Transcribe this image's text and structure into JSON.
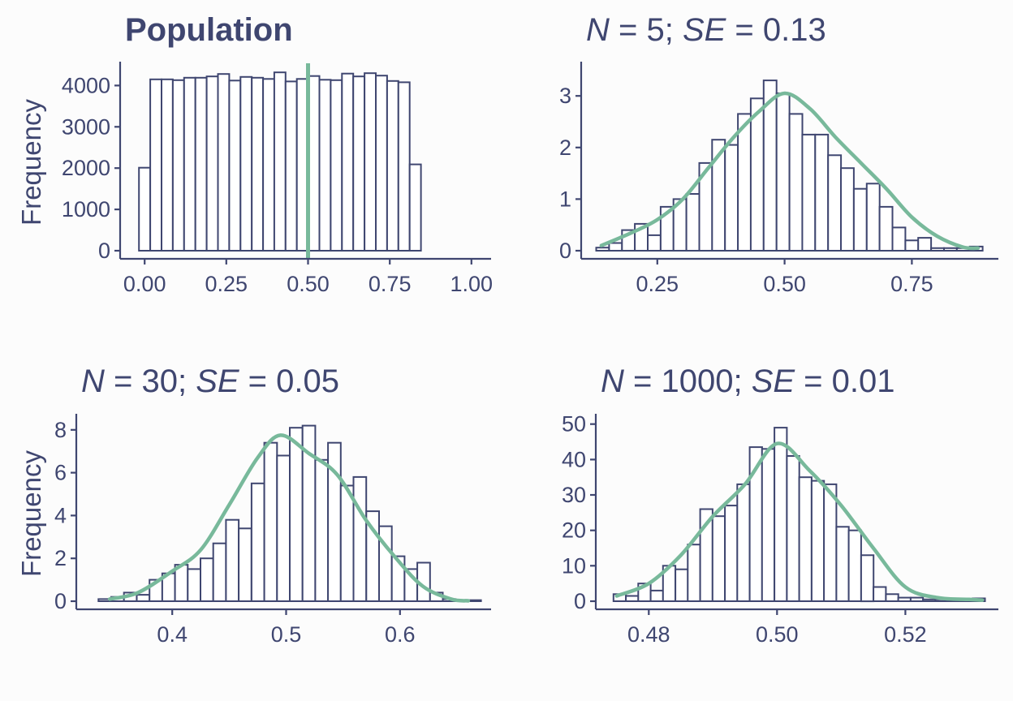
{
  "colors": {
    "ink": "#3f4670",
    "accent": "#78b99b",
    "background": "#fcfcfc"
  },
  "chart_data": [
    {
      "type": "bar",
      "title": "Population",
      "ylabel": "Frequency",
      "xlim": [
        -0.06,
        1.06
      ],
      "ylim": [
        0,
        4500
      ],
      "xticks": [
        0,
        0.25,
        0.5,
        0.75,
        1
      ],
      "xtick_labels": [
        "0.00",
        "0.25",
        "0.50",
        "0.75",
        "1.00"
      ],
      "yticks": [
        0,
        1000,
        2000,
        3000,
        4000
      ],
      "ytick_labels": [
        "0",
        "1000",
        "2000",
        "3000",
        "4000"
      ],
      "bin_start": -0.0172,
      "bin_width": 0.0345,
      "values": [
        2010,
        4150,
        4150,
        4130,
        4190,
        4190,
        4220,
        4280,
        4120,
        4210,
        4190,
        4160,
        4320,
        4100,
        4160,
        4230,
        4140,
        4130,
        4290,
        4220,
        4300,
        4240,
        4110,
        4080,
        2090
      ],
      "vline": 0.5,
      "grid": false
    },
    {
      "type": "bar",
      "title_parts": [
        "N",
        " = 5; ",
        "SE",
        " = 0.13"
      ],
      "xlim": [
        0.11,
        0.92
      ],
      "ylim": [
        0,
        3.6
      ],
      "xticks": [
        0.25,
        0.5,
        0.75
      ],
      "xtick_labels": [
        "0.25",
        "0.50",
        "0.75"
      ],
      "yticks": [
        0,
        1,
        2,
        3
      ],
      "ytick_labels": [
        "0",
        "1",
        "2",
        "3"
      ],
      "bin_start": 0.13,
      "bin_width": 0.0253,
      "values": [
        0.06,
        0.15,
        0.4,
        0.52,
        0.3,
        0.85,
        1.0,
        1.1,
        1.7,
        2.15,
        2.05,
        2.65,
        2.95,
        3.3,
        3.05,
        2.65,
        2.25,
        2.25,
        1.85,
        1.6,
        1.2,
        1.3,
        0.85,
        0.45,
        0.2,
        0.25,
        0.05,
        0.05,
        0.05,
        0.08
      ],
      "density": {
        "x": [
          0.14,
          0.2,
          0.25,
          0.3,
          0.35,
          0.4,
          0.45,
          0.5,
          0.55,
          0.6,
          0.65,
          0.7,
          0.75,
          0.8,
          0.85,
          0.88
        ],
        "y": [
          0.1,
          0.35,
          0.6,
          1.0,
          1.6,
          2.2,
          2.7,
          3.05,
          2.75,
          2.2,
          1.7,
          1.2,
          0.65,
          0.28,
          0.07,
          0.05
        ]
      },
      "grid": false
    },
    {
      "type": "bar",
      "title_parts": [
        "N",
        " = 30; ",
        "SE",
        " = 0.05"
      ],
      "ylabel": "Frequency",
      "xlim": [
        0.32,
        0.68
      ],
      "ylim": [
        0,
        8.6
      ],
      "xticks": [
        0.4,
        0.5,
        0.6
      ],
      "xtick_labels": [
        "0.4",
        "0.5",
        "0.6"
      ],
      "yticks": [
        0,
        2,
        4,
        6,
        8
      ],
      "ytick_labels": [
        "0",
        "2",
        "4",
        "6",
        "8"
      ],
      "bin_start": 0.3352,
      "bin_width": 0.0112,
      "values": [
        0.1,
        0.2,
        0.4,
        0.3,
        1.0,
        1.3,
        1.7,
        1.5,
        2.0,
        2.7,
        3.8,
        3.4,
        5.5,
        7.4,
        6.8,
        8.1,
        8.2,
        6.6,
        7.4,
        5.4,
        5.8,
        4.2,
        3.5,
        2.1,
        1.5,
        1.8,
        0.4,
        0.1,
        0.05,
        0.05
      ],
      "density": {
        "x": [
          0.345,
          0.37,
          0.4,
          0.425,
          0.45,
          0.475,
          0.495,
          0.52,
          0.545,
          0.57,
          0.595,
          0.62,
          0.645,
          0.66
        ],
        "y": [
          0.1,
          0.4,
          1.4,
          2.4,
          4.5,
          6.7,
          7.75,
          6.9,
          5.9,
          3.8,
          2.1,
          0.7,
          0.1,
          0.02
        ]
      },
      "grid": false
    },
    {
      "type": "bar",
      "title_parts": [
        "N",
        " = 1000; ",
        "SE",
        " = 0.01"
      ],
      "xlim": [
        0.4725,
        0.5345
      ],
      "ylim": [
        0,
        52
      ],
      "xticks": [
        0.48,
        0.5,
        0.52
      ],
      "xtick_labels": [
        "0.48",
        "0.50",
        "0.52"
      ],
      "yticks": [
        0,
        10,
        20,
        30,
        40,
        50
      ],
      "ytick_labels": [
        "0",
        "10",
        "20",
        "30",
        "40",
        "50"
      ],
      "bin_start": 0.4745,
      "bin_width": 0.00193,
      "values": [
        2,
        1.5,
        5,
        3,
        10,
        9,
        16,
        26,
        24,
        27,
        33,
        43.5,
        43,
        49,
        41,
        35,
        34,
        33,
        21,
        20,
        13,
        4,
        2,
        1,
        1,
        0.5,
        0.5,
        0.3,
        0.5,
        0.8
      ],
      "density": {
        "x": [
          0.475,
          0.48,
          0.485,
          0.49,
          0.495,
          0.5,
          0.505,
          0.51,
          0.515,
          0.52,
          0.525,
          0.53,
          0.532
        ],
        "y": [
          1.5,
          5,
          13,
          24,
          33,
          44.5,
          37,
          27,
          15,
          4,
          1,
          0.5,
          0.3
        ]
      },
      "grid": false
    }
  ]
}
